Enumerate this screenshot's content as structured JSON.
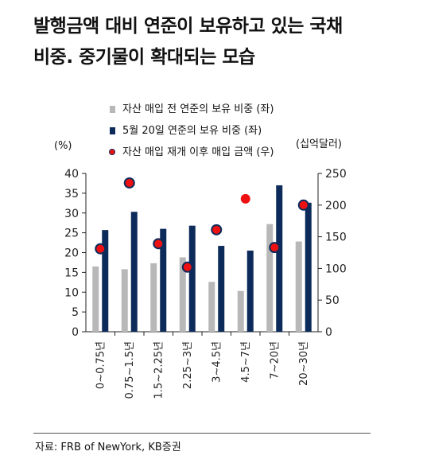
{
  "title_line1": "발행금액 대비 연준이 보유하고 있는 국채",
  "title_line2": "비중. 중기물이 확대되는 모습",
  "source": "자료: FRB of NewYork, KB증권",
  "chart_data": {
    "type": "bar",
    "categories": [
      "0~0.75년",
      "0.75~1.5년",
      "1.5~2.25년",
      "2.25~3년",
      "3~4.5년",
      "4.5~7년",
      "7~20년",
      "20~30년"
    ],
    "y_left_label": "(%)",
    "y_right_label": "(십억달러)",
    "y_left_range": [
      0,
      40
    ],
    "y_right_range": [
      0,
      250
    ],
    "y_left_ticks": [
      0,
      5,
      10,
      15,
      20,
      25,
      30,
      35,
      40
    ],
    "y_right_ticks": [
      0,
      50,
      100,
      150,
      200,
      250
    ],
    "legend_position": "top",
    "grid": false,
    "series": [
      {
        "name": "자산 매입 전 연준의 보유 비중 (좌)",
        "axis": "left",
        "kind": "bar",
        "color": "#b8b8b8",
        "values": [
          16.5,
          15.8,
          17.3,
          18.8,
          12.6,
          10.3,
          27.2,
          22.8
        ]
      },
      {
        "name": "5월 20일 연준의 보유 비중 (좌)",
        "axis": "left",
        "kind": "bar",
        "color": "#0d2b5a",
        "values": [
          25.7,
          30.3,
          26.0,
          26.8,
          21.7,
          20.5,
          37.0,
          32.6
        ]
      },
      {
        "name": "자산 매입 재개 이후 매입 금액 (우)",
        "axis": "right",
        "kind": "dot",
        "color": "#ee1111",
        "values": [
          131,
          235,
          139,
          102,
          161,
          210,
          133,
          200
        ]
      }
    ]
  }
}
